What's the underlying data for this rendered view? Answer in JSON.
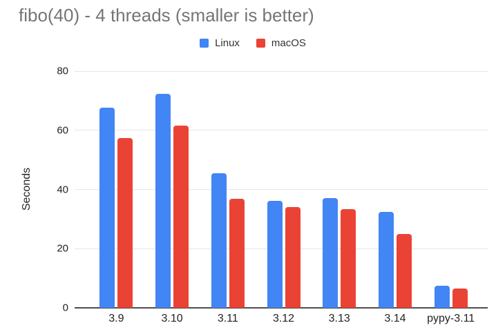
{
  "chart_data": {
    "type": "bar",
    "title": "fibo(40) - 4 threads (smaller is better)",
    "categories": [
      "3.9",
      "3.10",
      "3.11",
      "3.12",
      "3.13",
      "3.14",
      "pypy-3.11"
    ],
    "series": [
      {
        "name": "Linux",
        "color": "#4285F4",
        "values": [
          67.6,
          72.2,
          45.6,
          36.2,
          37.2,
          32.5,
          7.4
        ]
      },
      {
        "name": "macOS",
        "color": "#EA4335",
        "values": [
          57.3,
          61.5,
          36.9,
          34.0,
          33.3,
          24.9,
          6.6
        ]
      }
    ],
    "xlabel": "",
    "ylabel": "Seconds",
    "ylim": [
      0,
      80
    ],
    "yticks": [
      0,
      20,
      40,
      60,
      80
    ],
    "grid": true,
    "legend_position": "top",
    "colors": {
      "linux_blue": "#4285F4",
      "macos_red": "#EA4335",
      "title_text": "#757575",
      "tick_text": "#222222",
      "gridline": "#e6e6e6",
      "axis_line": "#4d4d4d",
      "background": "#ffffff"
    }
  }
}
